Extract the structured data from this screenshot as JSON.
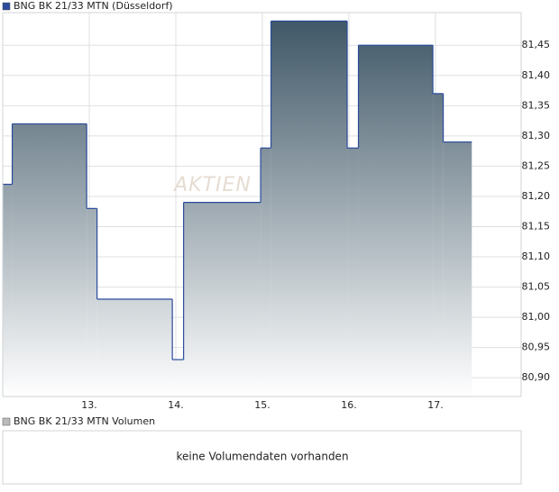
{
  "chart_data": {
    "type": "step-area",
    "title": "BNG BK 21/33 MTN (Düsseldorf)",
    "watermark": "AKTIEN",
    "series": [
      {
        "name": "BNG BK 21/33 MTN (Düsseldorf)",
        "color": "#2a4b9b",
        "x": [
          12.0,
          12.11,
          12.97,
          13.09,
          13.96,
          14.09,
          14.98,
          15.1,
          15.98,
          16.11,
          16.97,
          17.09,
          17.42
        ],
        "values": [
          81.22,
          81.32,
          81.18,
          81.03,
          80.93,
          81.19,
          81.28,
          81.49,
          81.28,
          81.45,
          81.37,
          81.29,
          81.29
        ]
      }
    ],
    "xlim": [
      12.0,
      17.99
    ],
    "xticks": [
      {
        "value": 13,
        "label": "13."
      },
      {
        "value": 14,
        "label": "14."
      },
      {
        "value": 15,
        "label": "15."
      },
      {
        "value": 16,
        "label": "16."
      },
      {
        "value": 17,
        "label": "17."
      }
    ],
    "ylim": [
      80.869,
      81.504
    ],
    "yticks": [
      {
        "value": 80.9,
        "label": "80,90"
      },
      {
        "value": 80.95,
        "label": "80,95"
      },
      {
        "value": 81.0,
        "label": "81,00"
      },
      {
        "value": 81.05,
        "label": "81,05"
      },
      {
        "value": 81.1,
        "label": "81,10"
      },
      {
        "value": 81.15,
        "label": "81,15"
      },
      {
        "value": 81.2,
        "label": "81,20"
      },
      {
        "value": 81.25,
        "label": "81,25"
      },
      {
        "value": 81.3,
        "label": "81,30"
      },
      {
        "value": 81.35,
        "label": "81,35"
      },
      {
        "value": 81.4,
        "label": "81,40"
      },
      {
        "value": 81.45,
        "label": "81,45"
      }
    ],
    "grid": true
  },
  "volume_panel": {
    "legend": "BNG BK 21/33 MTN Volumen",
    "message": "keine Volumendaten vorhanden"
  }
}
